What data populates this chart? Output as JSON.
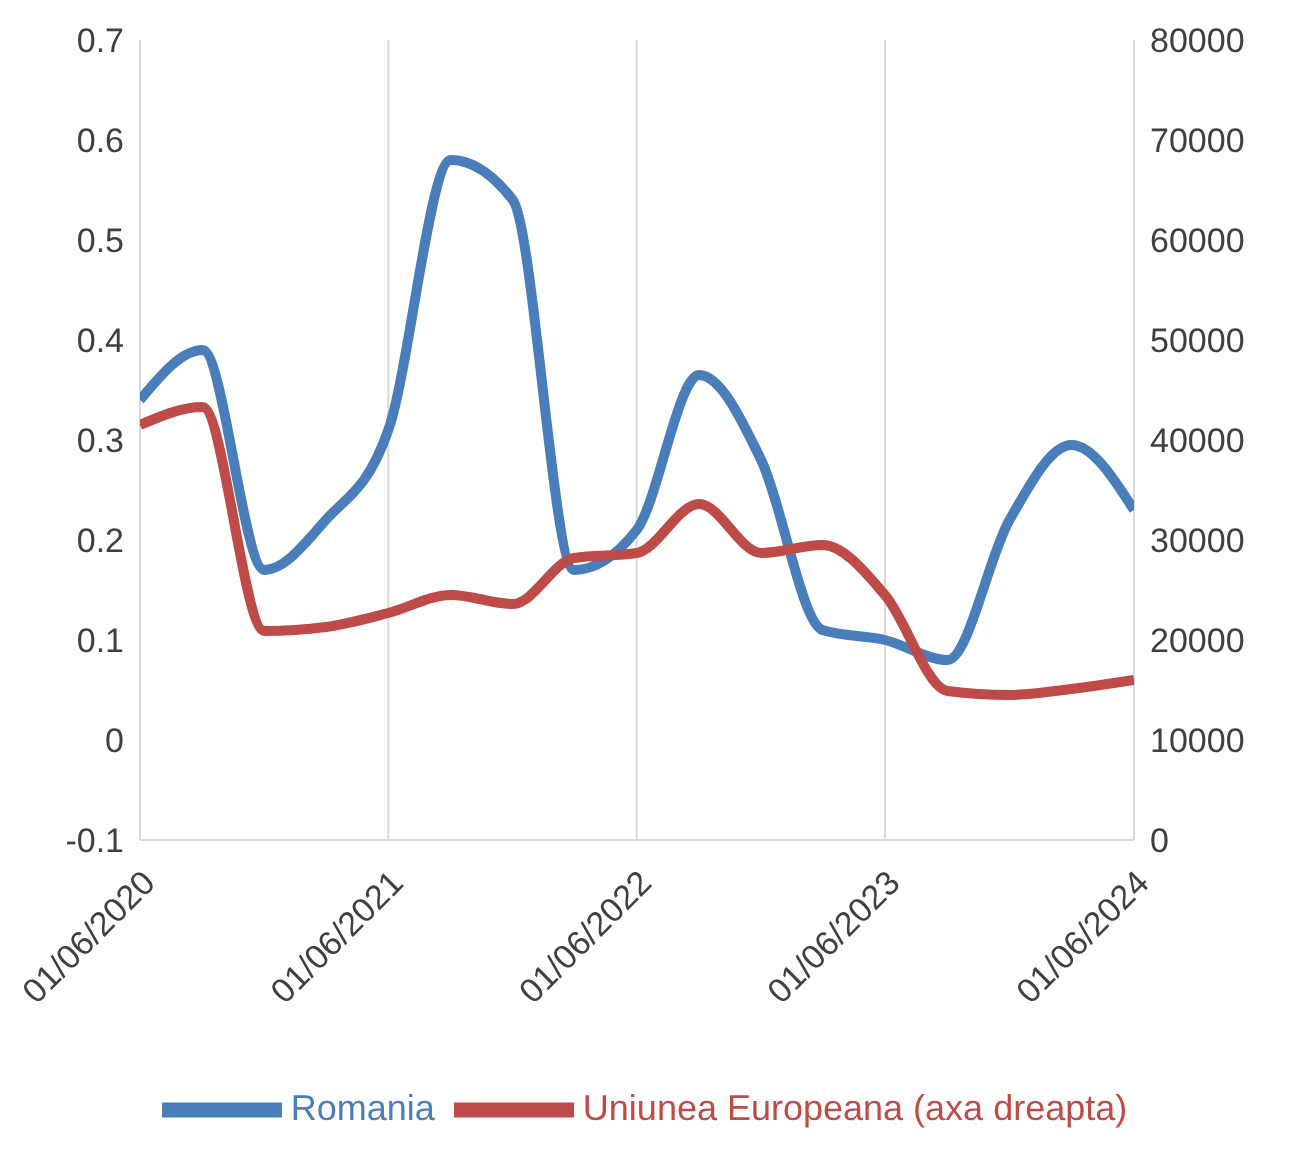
{
  "chart_data": {
    "type": "line",
    "x": [
      "2020-06",
      "2020-09",
      "2020-12",
      "2021-03",
      "2021-06",
      "2021-09",
      "2021-12",
      "2022-03",
      "2022-06",
      "2022-09",
      "2022-12",
      "2023-03",
      "2023-06",
      "2023-09",
      "2023-12",
      "2024-03",
      "2024-06"
    ],
    "series": [
      {
        "name": "Romania",
        "color": "#4a7ebb",
        "values": [
          0.34,
          0.39,
          0.17,
          0.22,
          0.31,
          0.58,
          0.54,
          0.17,
          0.21,
          0.365,
          0.28,
          0.11,
          0.1,
          0.08,
          0.22,
          0.295,
          0.23
        ]
      },
      {
        "name": "Uniunea Europeana (axa dreapta)",
        "color": "#be4b48",
        "axis": "y2",
        "values": [
          41500,
          43300,
          20900,
          21300,
          22700,
          24500,
          23600,
          28200,
          28700,
          33600,
          28700,
          29500,
          24500,
          14900,
          14500,
          15100,
          16000
        ]
      }
    ],
    "xlim": [
      "2020-06-01",
      "2024-06-01"
    ],
    "xticks": [
      {
        "value": "2020-06-01",
        "label": "01/06/2020"
      },
      {
        "value": "2021-06-01",
        "label": "01/06/2021"
      },
      {
        "value": "2022-06-01",
        "label": "01/06/2022"
      },
      {
        "value": "2023-06-01",
        "label": "01/06/2023"
      },
      {
        "value": "2024-06-01",
        "label": "01/06/2024"
      }
    ],
    "ylim": [
      -0.1,
      0.7
    ],
    "yticks": [
      -0.1,
      0,
      0.1,
      0.2,
      0.3,
      0.4,
      0.5,
      0.6,
      0.7
    ],
    "y2lim": [
      0,
      80000
    ],
    "y2ticks": [
      0,
      10000,
      20000,
      30000,
      40000,
      50000,
      60000,
      70000,
      80000
    ],
    "grid": "x",
    "legend": "bottom",
    "marker": "none",
    "line_style": "solid"
  }
}
